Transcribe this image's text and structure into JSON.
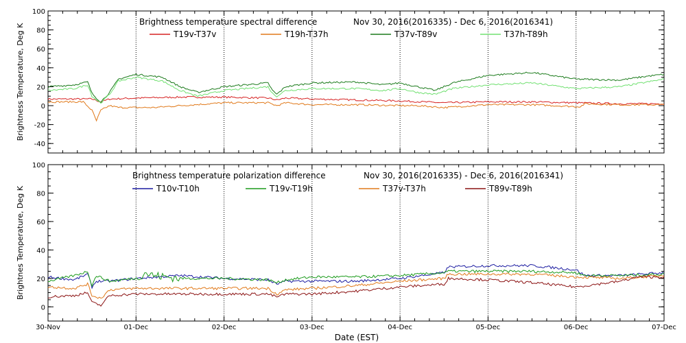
{
  "chart_data": [
    {
      "type": "line",
      "title": "Brightness temperature spectral difference",
      "date_range": "Nov 30, 2016(2016335) - Dec  6, 2016(2016341)",
      "ylabel": "Brightness Temperature, Deg K",
      "xlabel": "",
      "ylim": [
        -50,
        100
      ],
      "y_ticks": [
        "-40",
        "-20",
        "0",
        "20",
        "40",
        "60",
        "80",
        "100"
      ],
      "xlim": [
        0,
        7
      ],
      "x_tick_labels": [],
      "grid": "vertical dotted lines at each day",
      "legend": "top, inside plot",
      "series": [
        {
          "name": "T19v-T37v",
          "color": "#d62020",
          "points": [
            [
              0,
              7
            ],
            [
              0.5,
              7
            ],
            [
              0.6,
              4
            ],
            [
              0.7,
              7
            ],
            [
              1,
              8
            ],
            [
              1.5,
              9
            ],
            [
              2,
              9
            ],
            [
              2.5,
              8
            ],
            [
              2.6,
              6
            ],
            [
              2.7,
              8
            ],
            [
              3,
              7
            ],
            [
              3.5,
              6
            ],
            [
              4,
              5
            ],
            [
              4.5,
              3
            ],
            [
              5,
              4
            ],
            [
              5.5,
              4
            ],
            [
              6,
              3
            ],
            [
              6.5,
              2
            ],
            [
              7,
              2
            ]
          ]
        },
        {
          "name": "T19h-T37h",
          "color": "#e07818",
          "points": [
            [
              0,
              4
            ],
            [
              0.4,
              4
            ],
            [
              0.5,
              -5
            ],
            [
              0.55,
              -16
            ],
            [
              0.6,
              -5
            ],
            [
              0.7,
              0
            ],
            [
              0.8,
              -2
            ],
            [
              1,
              -2
            ],
            [
              1.2,
              -2
            ],
            [
              1.5,
              0
            ],
            [
              2,
              3
            ],
            [
              2.5,
              3
            ],
            [
              2.6,
              0
            ],
            [
              2.7,
              3
            ],
            [
              3,
              1
            ],
            [
              3.5,
              1
            ],
            [
              4,
              0
            ],
            [
              4.2,
              0
            ],
            [
              4.5,
              -2
            ],
            [
              5,
              1
            ],
            [
              5.5,
              1
            ],
            [
              6,
              -1
            ],
            [
              6.05,
              -1
            ],
            [
              6.1,
              2
            ],
            [
              6.5,
              1
            ],
            [
              7,
              1
            ]
          ]
        },
        {
          "name": "T37v-T89v",
          "color": "#1a7a1a",
          "points": [
            [
              0,
              20
            ],
            [
              0.3,
              22
            ],
            [
              0.45,
              25
            ],
            [
              0.5,
              13
            ],
            [
              0.55,
              8
            ],
            [
              0.6,
              4
            ],
            [
              0.7,
              14
            ],
            [
              0.8,
              28
            ],
            [
              1,
              33
            ],
            [
              1.3,
              30
            ],
            [
              1.5,
              20
            ],
            [
              1.7,
              14
            ],
            [
              2,
              20
            ],
            [
              2.5,
              24
            ],
            [
              2.55,
              16
            ],
            [
              2.6,
              12
            ],
            [
              2.7,
              20
            ],
            [
              3,
              24
            ],
            [
              3.5,
              25
            ],
            [
              3.8,
              22
            ],
            [
              4,
              24
            ],
            [
              4.2,
              20
            ],
            [
              4.4,
              16
            ],
            [
              4.6,
              24
            ],
            [
              5,
              32
            ],
            [
              5.5,
              35
            ],
            [
              6,
              28
            ],
            [
              6.5,
              27
            ],
            [
              6.8,
              31
            ],
            [
              7,
              33
            ]
          ]
        },
        {
          "name": "T37h-T89h",
          "color": "#70e070",
          "points": [
            [
              0,
              16
            ],
            [
              0.3,
              18
            ],
            [
              0.45,
              22
            ],
            [
              0.5,
              10
            ],
            [
              0.55,
              6
            ],
            [
              0.6,
              3
            ],
            [
              0.7,
              12
            ],
            [
              0.8,
              26
            ],
            [
              1,
              30
            ],
            [
              1.3,
              26
            ],
            [
              1.5,
              16
            ],
            [
              1.7,
              10
            ],
            [
              2,
              16
            ],
            [
              2.5,
              20
            ],
            [
              2.55,
              13
            ],
            [
              2.6,
              10
            ],
            [
              2.7,
              16
            ],
            [
              3,
              18
            ],
            [
              3.5,
              18
            ],
            [
              3.8,
              16
            ],
            [
              4,
              18
            ],
            [
              4.2,
              14
            ],
            [
              4.4,
              12
            ],
            [
              4.6,
              18
            ],
            [
              5,
              22
            ],
            [
              5.5,
              24
            ],
            [
              6,
              18
            ],
            [
              6.5,
              20
            ],
            [
              7,
              28
            ]
          ]
        }
      ]
    },
    {
      "type": "line",
      "title": "Brightness temperature polarization difference",
      "date_range": "Nov 30, 2016(2016335) - Dec  6, 2016(2016341)",
      "ylabel": "Brightnes Temperature, Deg K",
      "xlabel": "Date (EST)",
      "ylim": [
        -10,
        100
      ],
      "y_ticks": [
        "0",
        "20",
        "40",
        "60",
        "80",
        "100"
      ],
      "xlim": [
        0,
        7
      ],
      "x_tick_labels": [
        "30-Nov",
        "01-Dec",
        "02-Dec",
        "03-Dec",
        "04-Dec",
        "05-Dec",
        "06-Dec",
        "07-Dec"
      ],
      "grid": "vertical dotted lines at each day",
      "legend": "top, inside plot",
      "series": [
        {
          "name": "T10v-T10h",
          "color": "#1a1aa0",
          "points": [
            [
              0,
              21
            ],
            [
              0.3,
              19
            ],
            [
              0.45,
              23
            ],
            [
              0.5,
              14
            ],
            [
              0.55,
              18
            ],
            [
              0.7,
              18
            ],
            [
              1,
              20
            ],
            [
              1.5,
              22
            ],
            [
              2,
              20
            ],
            [
              2.5,
              19
            ],
            [
              2.6,
              16
            ],
            [
              2.7,
              18
            ],
            [
              3,
              18
            ],
            [
              3.5,
              18
            ],
            [
              4,
              20
            ],
            [
              4.5,
              24
            ],
            [
              4.55,
              28
            ],
            [
              5,
              29
            ],
            [
              5.5,
              29
            ],
            [
              6,
              26
            ],
            [
              6.1,
              22
            ],
            [
              6.5,
              22
            ],
            [
              7,
              24
            ]
          ]
        },
        {
          "name": "T19v-T19h",
          "color": "#1a9a1a",
          "points": [
            [
              0,
              18
            ],
            [
              0.3,
              22
            ],
            [
              0.45,
              25
            ],
            [
              0.5,
              15
            ],
            [
              0.55,
              22
            ],
            [
              0.7,
              18
            ],
            [
              1,
              20
            ],
            [
              1.1,
              24
            ],
            [
              1.2,
              22
            ],
            [
              1.5,
              20
            ],
            [
              2,
              20
            ],
            [
              2.5,
              19
            ],
            [
              2.6,
              17
            ],
            [
              2.7,
              19
            ],
            [
              3,
              21
            ],
            [
              3.5,
              21
            ],
            [
              4,
              22
            ],
            [
              4.5,
              24
            ],
            [
              4.55,
              25
            ],
            [
              5,
              25
            ],
            [
              5.5,
              25
            ],
            [
              6,
              24
            ],
            [
              6.1,
              22
            ],
            [
              6.5,
              22
            ],
            [
              7,
              23
            ]
          ]
        },
        {
          "name": "T37v-T37h",
          "color": "#e07818",
          "points": [
            [
              0,
              14
            ],
            [
              0.3,
              13
            ],
            [
              0.45,
              16
            ],
            [
              0.5,
              8
            ],
            [
              0.6,
              6
            ],
            [
              0.7,
              12
            ],
            [
              1,
              13
            ],
            [
              1.5,
              13
            ],
            [
              2,
              13
            ],
            [
              2.5,
              13
            ],
            [
              2.6,
              9
            ],
            [
              2.7,
              12
            ],
            [
              3,
              13
            ],
            [
              3.5,
              15
            ],
            [
              4,
              18
            ],
            [
              4.5,
              20
            ],
            [
              4.55,
              23
            ],
            [
              5,
              23
            ],
            [
              5.5,
              23
            ],
            [
              6,
              21
            ],
            [
              6.5,
              20
            ],
            [
              7,
              22
            ]
          ]
        },
        {
          "name": "T89v-T89h",
          "color": "#8a1010",
          "points": [
            [
              0,
              7
            ],
            [
              0.3,
              8
            ],
            [
              0.45,
              10
            ],
            [
              0.5,
              3
            ],
            [
              0.6,
              1
            ],
            [
              0.7,
              8
            ],
            [
              1,
              9
            ],
            [
              1.5,
              9
            ],
            [
              2,
              9
            ],
            [
              2.5,
              9
            ],
            [
              2.6,
              7
            ],
            [
              2.7,
              9
            ],
            [
              3,
              9
            ],
            [
              3.5,
              11
            ],
            [
              4,
              14
            ],
            [
              4.5,
              16
            ],
            [
              4.55,
              20
            ],
            [
              5,
              19
            ],
            [
              5.5,
              17
            ],
            [
              6,
              14
            ],
            [
              6.5,
              18
            ],
            [
              6.7,
              21
            ],
            [
              7,
              21
            ]
          ]
        }
      ]
    }
  ]
}
